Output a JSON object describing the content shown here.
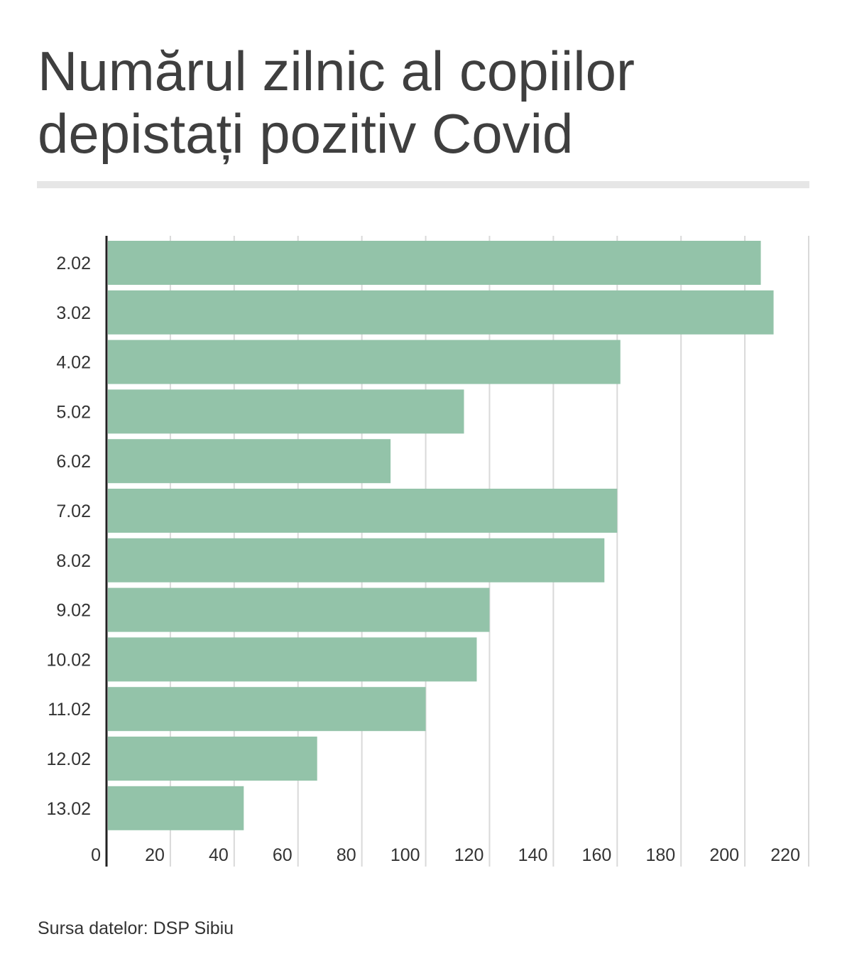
{
  "chart_data": {
    "type": "bar",
    "orientation": "horizontal",
    "title": "Numărul zilnic al copiilor\ndepistați pozitiv Covid",
    "categories": [
      "2.02",
      "3.02",
      "4.02",
      "5.02",
      "6.02",
      "7.02",
      "8.02",
      "9.02",
      "10.02",
      "11.02",
      "12.02",
      "13.02"
    ],
    "values": [
      205,
      209,
      161,
      112,
      89,
      160,
      156,
      120,
      116,
      100,
      66,
      43
    ],
    "x_ticks": [
      0,
      20,
      40,
      60,
      80,
      100,
      120,
      140,
      160,
      180,
      200,
      220
    ],
    "xlim": [
      0,
      220
    ],
    "grid": true,
    "colors": {
      "bar": "#93c3a9",
      "grid": "#d9d9d9",
      "axis": "#222222"
    },
    "source": "Sursa datelor: DSP Sibiu"
  }
}
